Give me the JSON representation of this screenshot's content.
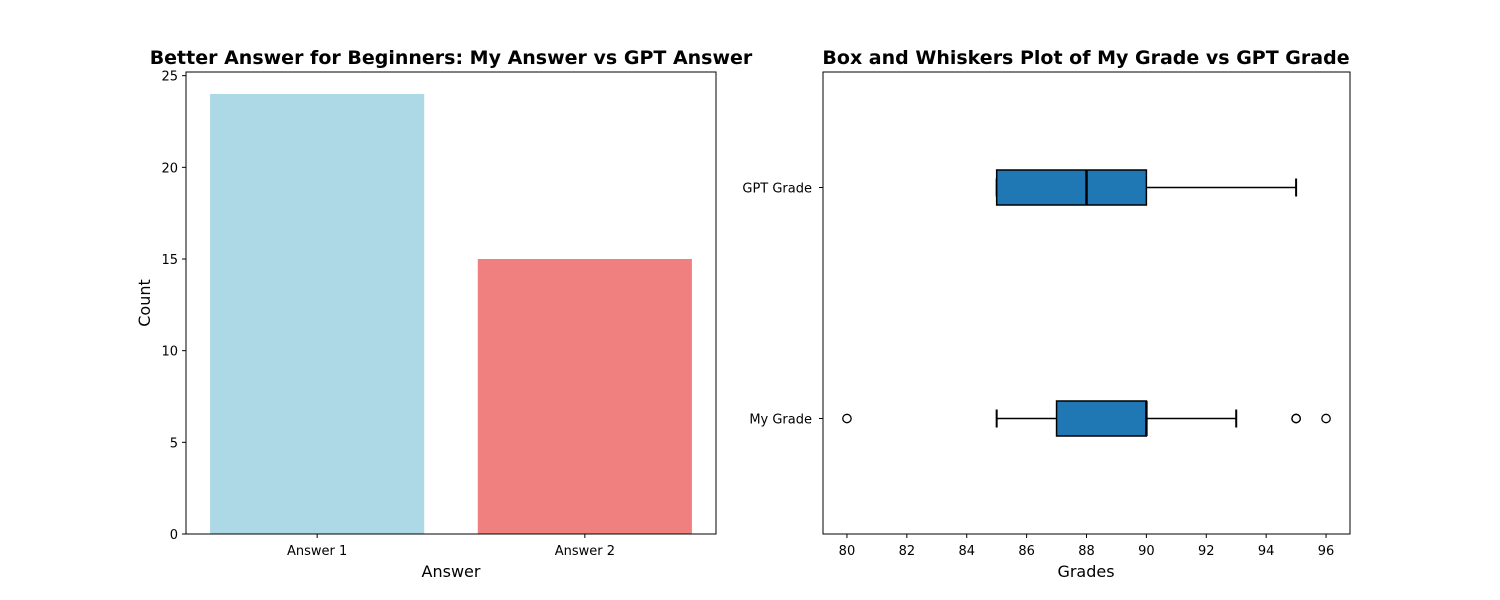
{
  "chart_data": [
    {
      "type": "bar",
      "title": "Better Answer for Beginners: My Answer vs GPT Answer",
      "xlabel": "Answer",
      "ylabel": "Count",
      "categories": [
        "Answer 1",
        "Answer 2"
      ],
      "values": [
        24,
        15
      ],
      "colors": [
        "#add8e6",
        "#f08080"
      ],
      "ylim": [
        0,
        25.2
      ],
      "yticks": [
        0,
        5,
        10,
        15,
        20,
        25
      ],
      "grid": false
    },
    {
      "type": "box",
      "orientation": "horizontal",
      "title": "Box and Whiskers Plot of My Grade vs GPT Grade",
      "xlabel": "Grades",
      "ylabel": "",
      "categories": [
        "My Grade",
        "GPT Grade"
      ],
      "boxes": [
        {
          "name": "My Grade",
          "whisker_low": 85,
          "q1": 87,
          "median": 90,
          "q3": 90,
          "whisker_high": 93,
          "outliers": [
            80,
            95,
            95,
            96
          ]
        },
        {
          "name": "GPT Grade",
          "whisker_low": 85,
          "q1": 85,
          "median": 88,
          "q3": 90,
          "whisker_high": 95,
          "outliers": []
        }
      ],
      "box_color": "#1f77b4",
      "xlim": [
        79.2,
        96.8
      ],
      "xticks": [
        80,
        82,
        84,
        86,
        88,
        90,
        92,
        94,
        96
      ],
      "grid": false
    }
  ]
}
